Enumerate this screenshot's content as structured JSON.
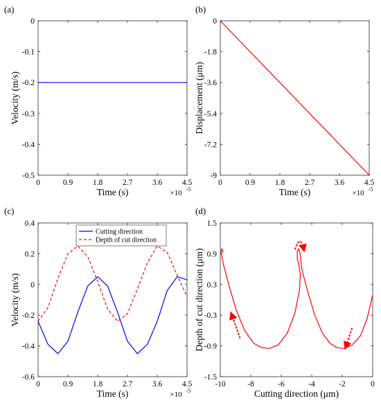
{
  "chart_data": [
    {
      "panel": "(a)",
      "type": "line",
      "xlabel": "Time (s)",
      "ylabel": "Velocity (m/s)",
      "x_exponent": "×10",
      "x_exponent_power": "-5",
      "xlim": [
        0,
        4.5
      ],
      "ylim": [
        -0.5,
        0
      ],
      "xticks": [
        "0",
        "0.9",
        "1.8",
        "2.7",
        "3.6",
        "4.5"
      ],
      "yticks": [
        "0",
        "-0.1",
        "-0.2",
        "-0.3",
        "-0.4",
        "-0.5"
      ],
      "series": [
        {
          "color": "#0000ff",
          "x": [
            0,
            4.5
          ],
          "y": [
            -0.2,
            -0.2
          ]
        }
      ]
    },
    {
      "panel": "(b)",
      "type": "line",
      "xlabel": "Time (s)",
      "ylabel": "Displacement (μm)",
      "x_exponent": "×10",
      "x_exponent_power": "-5",
      "xlim": [
        0,
        4.5
      ],
      "ylim": [
        -9,
        0
      ],
      "xticks": [
        "0",
        "0.9",
        "1.8",
        "2.7",
        "3.6",
        "4.5"
      ],
      "yticks": [
        "0",
        "-1.8",
        "-3.6",
        "-5.4",
        "-7.2",
        "-9"
      ],
      "series": [
        {
          "color": "#ff0000",
          "x": [
            0,
            4.5
          ],
          "y": [
            0,
            -9
          ]
        }
      ]
    },
    {
      "panel": "(c)",
      "type": "line",
      "xlabel": "Time (s)",
      "ylabel": "Velocity (m/s)",
      "x_exponent": "×10",
      "x_exponent_power": "-5",
      "xlim": [
        0,
        4.5
      ],
      "ylim": [
        -0.6,
        0.4
      ],
      "xticks": [
        "0",
        "0.9",
        "1.8",
        "2.7",
        "3.6",
        "4.5"
      ],
      "yticks": [
        "0.4",
        "0.2",
        "0",
        "-0.2",
        "-0.4",
        "-0.6"
      ],
      "legend_position": "top-center",
      "series": [
        {
          "name": "Cutting direction",
          "color": "#0000ff",
          "dash": "solid",
          "x": [
            0,
            0.3,
            0.6,
            0.9,
            1.2,
            1.5,
            1.8,
            2.1,
            2.4,
            2.7,
            3.0,
            3.3,
            3.6,
            3.9,
            4.2,
            4.5
          ],
          "y": [
            -0.24,
            -0.39,
            -0.45,
            -0.37,
            -0.18,
            -0.01,
            0.05,
            -0.01,
            -0.18,
            -0.37,
            -0.45,
            -0.39,
            -0.24,
            -0.04,
            0.05,
            0.03
          ]
        },
        {
          "name": "Depth of cut direction",
          "color": "#ff0000",
          "dash": "dashed",
          "x": [
            0,
            0.3,
            0.6,
            0.9,
            1.2,
            1.5,
            1.8,
            2.1,
            2.4,
            2.7,
            3.0,
            3.3,
            3.6,
            3.9,
            4.2,
            4.5
          ],
          "y": [
            -0.24,
            -0.15,
            0.04,
            0.2,
            0.25,
            0.18,
            0.02,
            -0.16,
            -0.24,
            -0.19,
            -0.03,
            0.14,
            0.25,
            0.21,
            0.06,
            -0.08
          ]
        }
      ]
    },
    {
      "panel": "(d)",
      "type": "line",
      "xlabel": "Cutting direction (μm)",
      "ylabel": "Depth of cut direction (μm)",
      "xlim": [
        -10,
        0
      ],
      "ylim": [
        -1.5,
        1.5
      ],
      "xticks": [
        "-10",
        "-8",
        "-6",
        "-4",
        "-2",
        "0"
      ],
      "yticks": [
        "1.5",
        "0.9",
        "0.3",
        "-0.3",
        "-0.9",
        "-1.5"
      ],
      "series": [
        {
          "color": "#ff0000",
          "dash": "solid",
          "x": [
            0,
            -0.35,
            -0.8,
            -1.35,
            -1.9,
            -2.35,
            -2.8,
            -3.3,
            -3.8,
            -4.3,
            -4.65,
            -4.75,
            -4.85,
            -4.95,
            -4.95,
            -4.85,
            -4.75,
            -4.8,
            -5.1,
            -5.6,
            -6.2,
            -6.8,
            -7.3,
            -7.8,
            -8.4,
            -8.95,
            -9.45,
            -9.8,
            -9.95,
            -9.9,
            -9.8
          ],
          "y": [
            0.1,
            -0.35,
            -0.7,
            -0.88,
            -0.95,
            -0.93,
            -0.85,
            -0.65,
            -0.3,
            0.2,
            0.6,
            0.88,
            1.0,
            0.95,
            0.8,
            0.7,
            0.5,
            0.2,
            -0.25,
            -0.65,
            -0.88,
            -0.95,
            -0.93,
            -0.85,
            -0.6,
            -0.2,
            0.3,
            0.7,
            0.93,
            1.0,
            0.92
          ]
        }
      ],
      "annotations": [
        {
          "kind": "dashed-arrow",
          "color": "#ff0000",
          "x": [
            -8.7,
            -9.3
          ],
          "y": [
            -0.75,
            -0.25
          ]
        },
        {
          "kind": "dashed-arrow",
          "color": "#ff0000",
          "x": [
            -1.35,
            -1.8
          ],
          "y": [
            -0.55,
            -0.95
          ]
        },
        {
          "kind": "dashed-arc-arrow",
          "color": "#ff0000",
          "x": [
            -5.1,
            -4.75,
            -4.5
          ],
          "y": [
            0.98,
            1.18,
            0.95
          ]
        }
      ]
    }
  ]
}
